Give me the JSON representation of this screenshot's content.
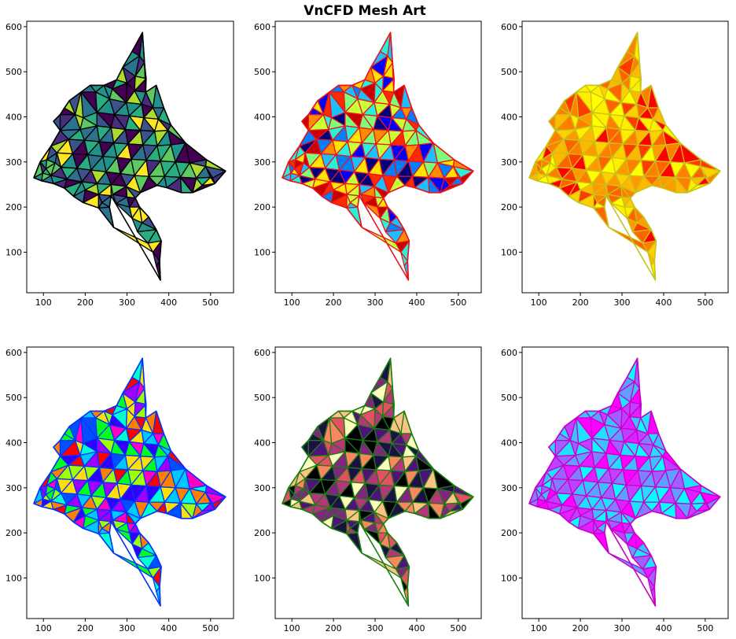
{
  "figure": {
    "title": "VnCFD Mesh Art"
  },
  "chart_data": [
    {
      "type": "mesh",
      "panel": 1,
      "xticks": [
        100,
        200,
        300,
        400,
        500
      ],
      "yticks": [
        100,
        200,
        300,
        400,
        500,
        600
      ],
      "xlim": [
        60,
        555
      ],
      "ylim": [
        10,
        612
      ],
      "edge_color": "#000000",
      "colormap": "viridis",
      "palette": [
        "#440154",
        "#472d7b",
        "#3b528b",
        "#2c728e",
        "#21918c",
        "#28ae80",
        "#5ec962",
        "#addc30",
        "#fde725"
      ]
    },
    {
      "type": "mesh",
      "panel": 2,
      "xticks": [
        100,
        200,
        300,
        400,
        500
      ],
      "yticks": [
        100,
        200,
        300,
        400,
        500,
        600
      ],
      "xlim": [
        60,
        555
      ],
      "ylim": [
        10,
        612
      ],
      "edge_color": "#e8141d",
      "colormap": "jet",
      "palette": [
        "#00007f",
        "#0000ff",
        "#007fff",
        "#1fbfff",
        "#29f0d8",
        "#7dff7a",
        "#c8ff37",
        "#ffe500",
        "#ff8c00",
        "#ff2a00",
        "#c80000"
      ]
    },
    {
      "type": "mesh",
      "panel": 3,
      "xticks": [
        100,
        200,
        300,
        400,
        500
      ],
      "yticks": [
        100,
        200,
        300,
        400,
        500,
        600
      ],
      "xlim": [
        60,
        555
      ],
      "ylim": [
        10,
        612
      ],
      "edge_color": "#c8c31a",
      "colormap": "autumn",
      "palette": [
        "#ff0000",
        "#ff3c00",
        "#ff6400",
        "#ff7f00",
        "#ff9a00",
        "#ffb800",
        "#ffd000",
        "#ffee00",
        "#ffff00"
      ]
    },
    {
      "type": "mesh",
      "panel": 4,
      "xticks": [
        100,
        200,
        300,
        400,
        500
      ],
      "yticks": [
        100,
        200,
        300,
        400,
        500,
        600
      ],
      "xlim": [
        60,
        555
      ],
      "ylim": [
        10,
        612
      ],
      "edge_color": "#0033ff",
      "colormap": "hsv",
      "palette": [
        "#ff0000",
        "#ff8000",
        "#ffe000",
        "#a0ff00",
        "#00ff20",
        "#00ffd0",
        "#00c8ff",
        "#0050ff",
        "#3000ff",
        "#a000ff",
        "#ff00c0"
      ]
    },
    {
      "type": "mesh",
      "panel": 5,
      "xticks": [
        100,
        200,
        300,
        400,
        500
      ],
      "yticks": [
        100,
        200,
        300,
        400,
        500,
        600
      ],
      "xlim": [
        60,
        555
      ],
      "ylim": [
        10,
        612
      ],
      "edge_color": "#1a7d10",
      "colormap": "magma",
      "palette": [
        "#000004",
        "#1c1044",
        "#4f127b",
        "#812581",
        "#b5367a",
        "#e55064",
        "#fb8761",
        "#fec287",
        "#fcfdbf"
      ]
    },
    {
      "type": "mesh",
      "panel": 6,
      "xticks": [
        100,
        200,
        300,
        400,
        500
      ],
      "yticks": [
        100,
        200,
        300,
        400,
        500,
        600
      ],
      "xlim": [
        60,
        555
      ],
      "ylim": [
        10,
        612
      ],
      "edge_color": "#c800c8",
      "colormap": "cool",
      "palette": [
        "#00ffff",
        "#20dfff",
        "#40bfff",
        "#609fff",
        "#807fff",
        "#9f60ff",
        "#bf40ff",
        "#df20ff",
        "#ff00ff"
      ]
    }
  ]
}
